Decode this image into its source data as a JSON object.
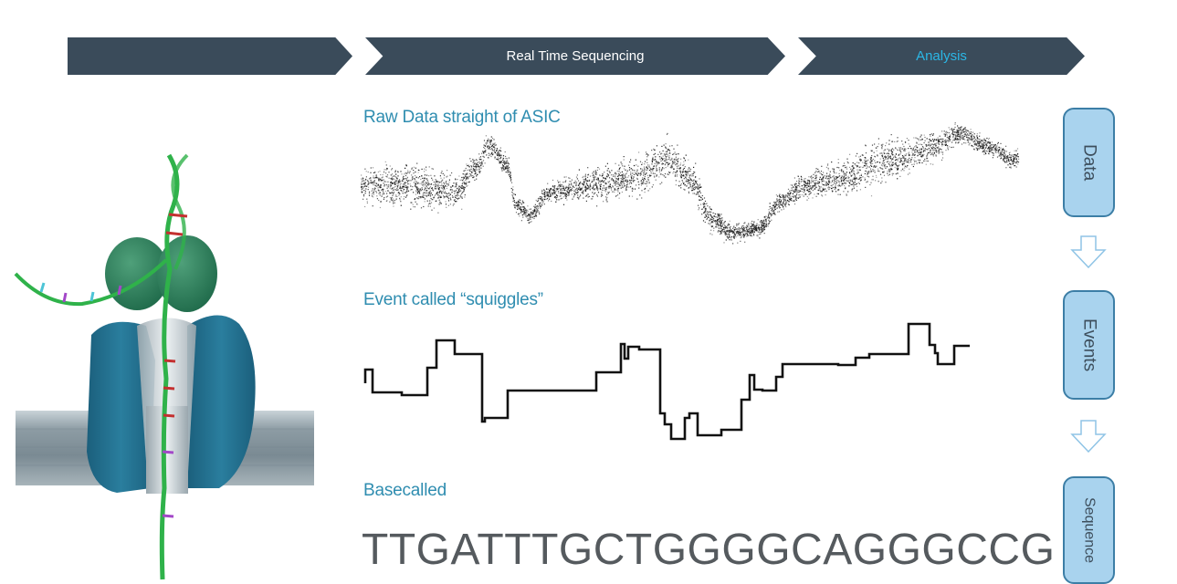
{
  "header": {
    "steps": [
      {
        "label": ""
      },
      {
        "label": "Real Time Sequencing"
      },
      {
        "label": "Analysis"
      }
    ],
    "colors": {
      "bar": "#3a4b5a",
      "bar_text": "#ffffff",
      "highlight": "#2bb7e6"
    }
  },
  "sections": {
    "raw": {
      "title": "Raw Data straight of ASIC"
    },
    "events": {
      "title": "Event called “squiggles”"
    },
    "basecalled": {
      "title": "Basecalled",
      "sequence": "TTGATTTGCTGGGGCAGGGCCG"
    }
  },
  "pipeline": {
    "stages": [
      "Data",
      "Events",
      "Sequence"
    ],
    "colors": {
      "box_fill": "#a9d3ee",
      "box_border": "#3c7ea6",
      "text": "#3d4e5c"
    }
  },
  "illustration": {
    "subject": "nanopore-protein-with-dna-strand",
    "colors": {
      "pore": "#1f6e8c",
      "motor": "#2a7a5a",
      "dna": "#2fb24a",
      "membrane": "#8a9aa3"
    }
  }
}
